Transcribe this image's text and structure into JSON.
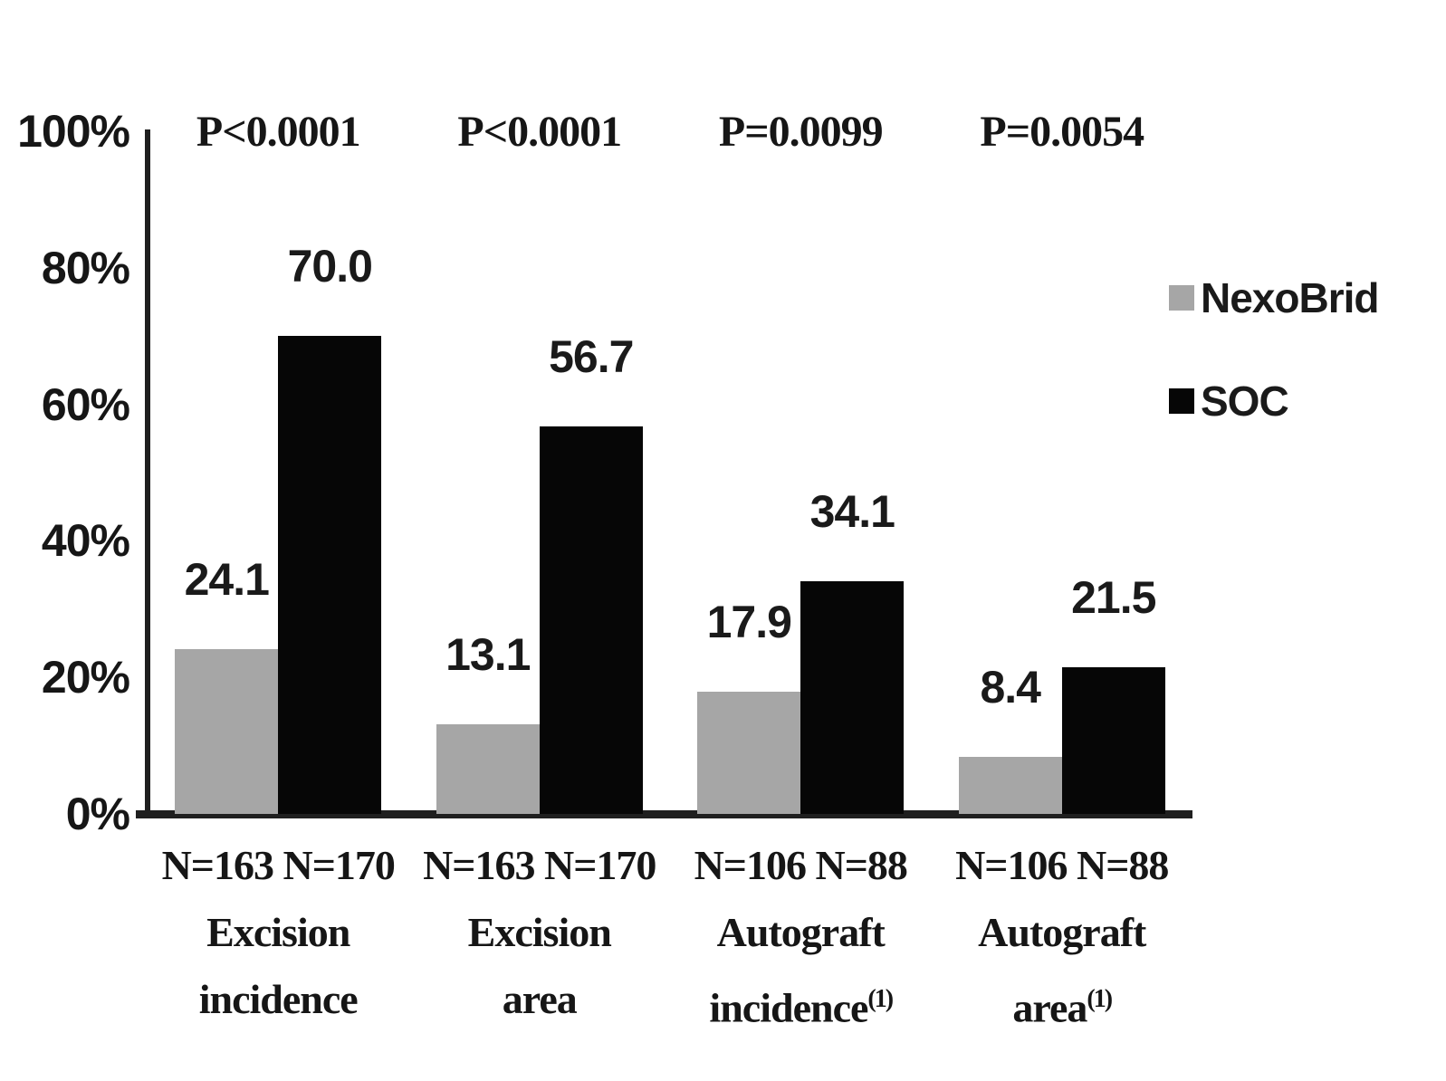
{
  "chart_data": {
    "type": "bar",
    "title": "",
    "xlabel": "",
    "ylabel": "",
    "unit": "%",
    "ylim": [
      0,
      100
    ],
    "grid": false,
    "legend_position": "right",
    "yticks": [
      {
        "value": 0,
        "label": "0%"
      },
      {
        "value": 20,
        "label": "20%"
      },
      {
        "value": 40,
        "label": "40%"
      },
      {
        "value": 60,
        "label": "60%"
      },
      {
        "value": 80,
        "label": "80%"
      },
      {
        "value": 100,
        "label": "100%"
      }
    ],
    "series": [
      {
        "name": "NexoBrid",
        "color": "#a6a6a6"
      },
      {
        "name": "SOC",
        "color": "#060606"
      }
    ],
    "categories": [
      "Excision incidence",
      "Excision area",
      "Autograft incidence(1)",
      "Autograft area(1)"
    ],
    "groups": [
      {
        "p_value": "P<0.0001",
        "n_line": "N=163 N=170",
        "cat_lines": [
          "Excision",
          "incidence"
        ],
        "footnote_sup": "",
        "values": [
          24.1,
          70.0
        ],
        "value_labels": [
          "24.1",
          "70.0"
        ]
      },
      {
        "p_value": "P<0.0001",
        "n_line": "N=163 N=170",
        "cat_lines": [
          "Excision",
          "area"
        ],
        "footnote_sup": "",
        "values": [
          13.1,
          56.7
        ],
        "value_labels": [
          "13.1",
          "56.7"
        ]
      },
      {
        "p_value": "P=0.0099",
        "n_line": "N=106 N=88",
        "cat_lines": [
          "Autograft",
          "incidence"
        ],
        "footnote_sup": "(1)",
        "values": [
          17.9,
          34.1
        ],
        "value_labels": [
          "17.9",
          "34.1"
        ]
      },
      {
        "p_value": "P=0.0054",
        "n_line": "N=106 N=88",
        "cat_lines": [
          "Autograft",
          "area"
        ],
        "footnote_sup": "(1)",
        "values": [
          8.4,
          21.5
        ],
        "value_labels": [
          "8.4",
          "21.5"
        ]
      }
    ]
  }
}
